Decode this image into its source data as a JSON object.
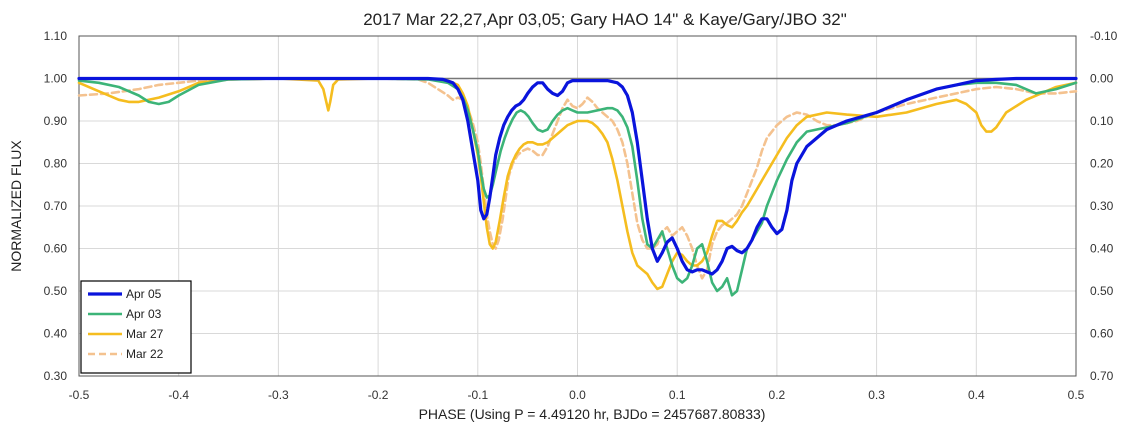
{
  "chart_data": {
    "type": "line",
    "title": "2017 Mar 22,27,Apr 03,05; Gary HAO 14\" & Kaye/Gary/JBO 32\"",
    "xlabel": "PHASE (Using P = 4.49120 hr, BJDo = 2457687.80833)",
    "ylabel": "NORMALIZED FLUX",
    "xlim": [
      -0.5,
      0.5
    ],
    "ylim": [
      0.3,
      1.1
    ],
    "y2lim": [
      0.7,
      -0.1
    ],
    "grid": true,
    "reference_line": 1.0,
    "legend_position": "bottom-left",
    "x_ticks": [
      "-0.5",
      "-0.4",
      "-0.3",
      "-0.2",
      "-0.1",
      "0.0",
      "0.1",
      "0.2",
      "0.3",
      "0.4",
      "0.5"
    ],
    "y_ticks": [
      "1.10",
      "1.00",
      "0.90",
      "0.80",
      "0.70",
      "0.60",
      "0.50",
      "0.40",
      "0.30"
    ],
    "y2_ticks": [
      "-0.10",
      "0.00",
      "0.10",
      "0.20",
      "0.30",
      "0.40",
      "0.50",
      "0.60",
      "0.70"
    ],
    "series": [
      {
        "name": "Mar 22",
        "color": "#f4c28f",
        "dashed": true,
        "x": [
          -0.5,
          -0.47,
          -0.44,
          -0.42,
          -0.4,
          -0.38,
          -0.35,
          -0.3,
          -0.2,
          -0.16,
          -0.15,
          -0.14,
          -0.13,
          -0.125,
          -0.12,
          -0.115,
          -0.11,
          -0.105,
          -0.1,
          -0.097,
          -0.094,
          -0.091,
          -0.088,
          -0.085,
          -0.082,
          -0.079,
          -0.075,
          -0.072,
          -0.069,
          -0.065,
          -0.06,
          -0.055,
          -0.05,
          -0.045,
          -0.04,
          -0.035,
          -0.03,
          -0.025,
          -0.02,
          -0.015,
          -0.01,
          -0.005,
          0.0,
          0.005,
          0.01,
          0.015,
          0.02,
          0.025,
          0.03,
          0.035,
          0.04,
          0.045,
          0.05,
          0.055,
          0.06,
          0.065,
          0.07,
          0.075,
          0.08,
          0.085,
          0.09,
          0.095,
          0.1,
          0.105,
          0.11,
          0.115,
          0.12,
          0.125,
          0.13,
          0.135,
          0.14,
          0.145,
          0.15,
          0.155,
          0.16,
          0.165,
          0.17,
          0.175,
          0.18,
          0.185,
          0.19,
          0.2,
          0.21,
          0.22,
          0.23,
          0.24,
          0.25,
          0.26,
          0.28,
          0.3,
          0.33,
          0.36,
          0.38,
          0.4,
          0.42,
          0.44,
          0.46,
          0.48,
          0.5
        ],
        "y": [
          0.96,
          0.965,
          0.975,
          0.985,
          0.99,
          0.995,
          0.998,
          1.0,
          1.0,
          0.998,
          0.99,
          0.975,
          0.96,
          0.95,
          0.955,
          0.95,
          0.93,
          0.895,
          0.85,
          0.8,
          0.74,
          0.68,
          0.64,
          0.61,
          0.6,
          0.62,
          0.67,
          0.72,
          0.77,
          0.8,
          0.82,
          0.83,
          0.835,
          0.83,
          0.82,
          0.82,
          0.84,
          0.87,
          0.9,
          0.93,
          0.95,
          0.935,
          0.93,
          0.94,
          0.955,
          0.945,
          0.93,
          0.92,
          0.91,
          0.9,
          0.88,
          0.85,
          0.8,
          0.73,
          0.66,
          0.62,
          0.6,
          0.6,
          0.61,
          0.64,
          0.65,
          0.63,
          0.64,
          0.65,
          0.63,
          0.6,
          0.56,
          0.53,
          0.55,
          0.61,
          0.64,
          0.655,
          0.66,
          0.67,
          0.68,
          0.7,
          0.73,
          0.76,
          0.79,
          0.83,
          0.86,
          0.89,
          0.91,
          0.92,
          0.915,
          0.9,
          0.89,
          0.89,
          0.9,
          0.92,
          0.94,
          0.955,
          0.965,
          0.975,
          0.98,
          0.975,
          0.965,
          0.965,
          0.97
        ]
      },
      {
        "name": "Mar 27",
        "color": "#f5bd1f",
        "dashed": false,
        "x": [
          -0.5,
          -0.48,
          -0.46,
          -0.45,
          -0.44,
          -0.42,
          -0.4,
          -0.38,
          -0.35,
          -0.3,
          -0.26,
          -0.255,
          -0.252,
          -0.25,
          -0.248,
          -0.245,
          -0.24,
          -0.2,
          -0.15,
          -0.13,
          -0.12,
          -0.115,
          -0.11,
          -0.105,
          -0.1,
          -0.097,
          -0.094,
          -0.091,
          -0.088,
          -0.085,
          -0.082,
          -0.078,
          -0.074,
          -0.07,
          -0.066,
          -0.062,
          -0.058,
          -0.054,
          -0.05,
          -0.045,
          -0.04,
          -0.035,
          -0.03,
          -0.025,
          -0.02,
          -0.015,
          -0.01,
          -0.005,
          0.0,
          0.005,
          0.01,
          0.015,
          0.02,
          0.025,
          0.03,
          0.035,
          0.04,
          0.045,
          0.05,
          0.055,
          0.06,
          0.065,
          0.07,
          0.075,
          0.08,
          0.085,
          0.09,
          0.095,
          0.1,
          0.105,
          0.11,
          0.115,
          0.12,
          0.125,
          0.13,
          0.135,
          0.14,
          0.145,
          0.15,
          0.155,
          0.16,
          0.165,
          0.17,
          0.175,
          0.18,
          0.185,
          0.19,
          0.2,
          0.21,
          0.22,
          0.23,
          0.25,
          0.27,
          0.3,
          0.33,
          0.36,
          0.38,
          0.39,
          0.4,
          0.405,
          0.41,
          0.415,
          0.42,
          0.43,
          0.45,
          0.48,
          0.5
        ],
        "y": [
          0.99,
          0.97,
          0.95,
          0.945,
          0.945,
          0.955,
          0.97,
          0.99,
          0.998,
          1.0,
          0.995,
          0.975,
          0.945,
          0.925,
          0.945,
          0.985,
          0.998,
          1.0,
          1.0,
          0.995,
          0.985,
          0.965,
          0.935,
          0.88,
          0.82,
          0.77,
          0.71,
          0.65,
          0.61,
          0.6,
          0.615,
          0.665,
          0.72,
          0.77,
          0.8,
          0.82,
          0.835,
          0.845,
          0.85,
          0.85,
          0.845,
          0.845,
          0.85,
          0.86,
          0.87,
          0.88,
          0.89,
          0.895,
          0.9,
          0.9,
          0.9,
          0.895,
          0.885,
          0.87,
          0.85,
          0.81,
          0.76,
          0.7,
          0.64,
          0.59,
          0.56,
          0.55,
          0.54,
          0.52,
          0.505,
          0.51,
          0.54,
          0.57,
          0.59,
          0.585,
          0.57,
          0.56,
          0.56,
          0.57,
          0.59,
          0.63,
          0.665,
          0.665,
          0.655,
          0.65,
          0.665,
          0.685,
          0.7,
          0.72,
          0.74,
          0.76,
          0.78,
          0.82,
          0.86,
          0.89,
          0.91,
          0.92,
          0.915,
          0.91,
          0.92,
          0.94,
          0.95,
          0.94,
          0.92,
          0.89,
          0.875,
          0.875,
          0.885,
          0.92,
          0.95,
          0.98,
          0.99
        ]
      },
      {
        "name": "Apr 03",
        "color": "#3cb478",
        "dashed": false,
        "x": [
          -0.5,
          -0.48,
          -0.46,
          -0.44,
          -0.43,
          -0.42,
          -0.41,
          -0.4,
          -0.38,
          -0.35,
          -0.3,
          -0.2,
          -0.15,
          -0.13,
          -0.12,
          -0.115,
          -0.11,
          -0.105,
          -0.1,
          -0.097,
          -0.094,
          -0.091,
          -0.088,
          -0.085,
          -0.081,
          -0.077,
          -0.073,
          -0.069,
          -0.065,
          -0.061,
          -0.057,
          -0.053,
          -0.049,
          -0.045,
          -0.04,
          -0.035,
          -0.03,
          -0.025,
          -0.02,
          -0.015,
          -0.01,
          -0.005,
          0.0,
          0.01,
          0.02,
          0.03,
          0.035,
          0.04,
          0.045,
          0.05,
          0.055,
          0.06,
          0.065,
          0.07,
          0.075,
          0.08,
          0.085,
          0.09,
          0.095,
          0.1,
          0.105,
          0.11,
          0.115,
          0.12,
          0.125,
          0.13,
          0.135,
          0.14,
          0.145,
          0.15,
          0.155,
          0.16,
          0.165,
          0.17,
          0.175,
          0.18,
          0.185,
          0.19,
          0.195,
          0.2,
          0.21,
          0.22,
          0.23,
          0.25,
          0.27,
          0.3,
          0.33,
          0.36,
          0.38,
          0.4,
          0.42,
          0.44,
          0.46,
          0.48,
          0.5
        ],
        "y": [
          0.995,
          0.99,
          0.98,
          0.96,
          0.945,
          0.94,
          0.945,
          0.96,
          0.985,
          0.998,
          1.0,
          1.0,
          0.998,
          0.99,
          0.975,
          0.955,
          0.925,
          0.88,
          0.83,
          0.78,
          0.74,
          0.72,
          0.725,
          0.75,
          0.79,
          0.83,
          0.86,
          0.885,
          0.905,
          0.92,
          0.925,
          0.92,
          0.91,
          0.895,
          0.88,
          0.875,
          0.88,
          0.9,
          0.915,
          0.925,
          0.93,
          0.925,
          0.92,
          0.92,
          0.925,
          0.93,
          0.93,
          0.925,
          0.91,
          0.885,
          0.84,
          0.76,
          0.67,
          0.61,
          0.6,
          0.62,
          0.64,
          0.6,
          0.56,
          0.53,
          0.52,
          0.53,
          0.56,
          0.6,
          0.61,
          0.57,
          0.52,
          0.5,
          0.51,
          0.53,
          0.49,
          0.5,
          0.55,
          0.6,
          0.62,
          0.64,
          0.66,
          0.7,
          0.73,
          0.76,
          0.81,
          0.85,
          0.875,
          0.885,
          0.895,
          0.92,
          0.95,
          0.975,
          0.985,
          0.99,
          0.99,
          0.985,
          0.965,
          0.975,
          0.99
        ]
      },
      {
        "name": "Apr 05",
        "color": "#0a14dc",
        "dashed": false,
        "x": [
          -0.5,
          -0.3,
          -0.2,
          -0.15,
          -0.135,
          -0.125,
          -0.12,
          -0.115,
          -0.11,
          -0.105,
          -0.1,
          -0.097,
          -0.094,
          -0.091,
          -0.088,
          -0.085,
          -0.082,
          -0.078,
          -0.074,
          -0.07,
          -0.066,
          -0.062,
          -0.058,
          -0.054,
          -0.05,
          -0.045,
          -0.04,
          -0.035,
          -0.03,
          -0.025,
          -0.02,
          -0.015,
          -0.01,
          -0.005,
          0.0,
          0.005,
          0.01,
          0.02,
          0.03,
          0.04,
          0.045,
          0.05,
          0.055,
          0.06,
          0.065,
          0.07,
          0.075,
          0.08,
          0.085,
          0.09,
          0.095,
          0.1,
          0.105,
          0.11,
          0.115,
          0.12,
          0.125,
          0.13,
          0.135,
          0.14,
          0.145,
          0.15,
          0.155,
          0.16,
          0.165,
          0.17,
          0.175,
          0.18,
          0.185,
          0.19,
          0.195,
          0.2,
          0.205,
          0.21,
          0.215,
          0.22,
          0.23,
          0.25,
          0.27,
          0.3,
          0.33,
          0.36,
          0.38,
          0.4,
          0.42,
          0.44,
          0.46,
          0.48,
          0.5
        ],
        "y": [
          1.0,
          1.0,
          1.0,
          1.0,
          0.998,
          0.99,
          0.975,
          0.95,
          0.9,
          0.83,
          0.76,
          0.69,
          0.67,
          0.68,
          0.72,
          0.77,
          0.82,
          0.86,
          0.89,
          0.91,
          0.925,
          0.935,
          0.94,
          0.95,
          0.965,
          0.98,
          0.99,
          0.99,
          0.975,
          0.965,
          0.96,
          0.97,
          0.99,
          0.995,
          0.995,
          0.995,
          0.995,
          0.995,
          0.995,
          0.99,
          0.98,
          0.96,
          0.92,
          0.85,
          0.76,
          0.67,
          0.6,
          0.57,
          0.59,
          0.615,
          0.625,
          0.6,
          0.57,
          0.55,
          0.545,
          0.55,
          0.55,
          0.545,
          0.54,
          0.55,
          0.57,
          0.6,
          0.605,
          0.595,
          0.59,
          0.6,
          0.62,
          0.65,
          0.67,
          0.67,
          0.65,
          0.635,
          0.645,
          0.69,
          0.76,
          0.8,
          0.84,
          0.88,
          0.9,
          0.92,
          0.95,
          0.975,
          0.985,
          0.995,
          0.998,
          1.0,
          1.0,
          1.0,
          1.0
        ]
      }
    ],
    "legend_order": [
      "Apr 05",
      "Apr 03",
      "Mar 27",
      "Mar 22"
    ]
  }
}
